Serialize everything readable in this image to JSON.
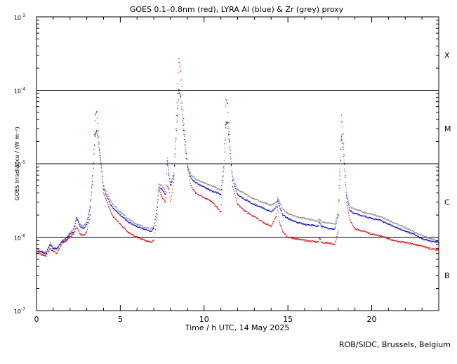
{
  "chart_data": {
    "type": "scatter",
    "title": "GOES 0.1–0.8nm (red), LYRA Al (blue) & Zr (grey) proxy",
    "xlabel": "Time / h UTC, 14 May 2025",
    "ylabel": "GOES Irradiance / (W m⁻²)",
    "xlim": [
      0,
      24
    ],
    "ylim": [
      1e-07,
      0.001
    ],
    "yscale": "log",
    "x_ticks": [
      0,
      5,
      10,
      15,
      20
    ],
    "y_ticks": [
      {
        "value": 1e-07,
        "base": "10",
        "exp": "-7"
      },
      {
        "value": 1e-06,
        "base": "10",
        "exp": "-6"
      },
      {
        "value": 1e-05,
        "base": "10",
        "exp": "-5"
      },
      {
        "value": 0.0001,
        "base": "10",
        "exp": "-4"
      },
      {
        "value": 0.001,
        "base": "10",
        "exp": "-3"
      }
    ],
    "flare_class_lines": [
      1e-06,
      1e-05,
      0.0001
    ],
    "flare_classes": [
      {
        "label": "X",
        "y": 0.0003
      },
      {
        "label": "M",
        "y": 3e-05
      },
      {
        "label": "C",
        "y": 3e-06
      },
      {
        "label": "B",
        "y": 3e-07
      }
    ],
    "series": [
      {
        "name": "GOES 0.1–0.8nm",
        "color": "#dd0000",
        "x": [
          0,
          0.3,
          0.6,
          0.8,
          1.0,
          1.2,
          1.5,
          1.8,
          2.0,
          2.2,
          2.4,
          2.6,
          2.8,
          3.0,
          3.2,
          3.4,
          3.5,
          3.6,
          3.8,
          4.0,
          4.5,
          5.0,
          5.5,
          6.0,
          6.5,
          6.8,
          7.0,
          7.2,
          7.3,
          7.5,
          7.7,
          7.8,
          7.9,
          8.0,
          8.2,
          8.4,
          8.5,
          8.6,
          8.8,
          9.0,
          9.2,
          9.5,
          10.0,
          10.5,
          10.8,
          11.0,
          11.2,
          11.3,
          11.4,
          11.5,
          11.7,
          12.0,
          12.5,
          13.0,
          13.5,
          14.0,
          14.3,
          14.4,
          14.5,
          14.7,
          15.0,
          15.5,
          16.0,
          16.5,
          16.8,
          16.9,
          17.0,
          17.5,
          17.8,
          18.0,
          18.1,
          18.2,
          18.3,
          18.5,
          18.7,
          19.0,
          19.5,
          20.0,
          20.5,
          21.0,
          21.5,
          22.0,
          22.5,
          23.0,
          23.5,
          24.0
        ],
        "y": [
          6.2e-07,
          5.8e-07,
          5.6e-07,
          7e-07,
          6.5e-07,
          6e-07,
          8e-07,
          9e-07,
          1e-06,
          1.1e-06,
          1.4e-06,
          1.1e-06,
          1.05e-06,
          1.2e-06,
          2e-06,
          1e-05,
          4.5e-05,
          5.2e-05,
          1.4e-05,
          4e-06,
          2e-06,
          1.5e-06,
          1.15e-06,
          1e-06,
          9e-07,
          8.5e-07,
          9e-07,
          2e-06,
          4.5e-06,
          3.5e-06,
          3e-06,
          5e-06,
          4.5e-06,
          3e-06,
          6e-06,
          9e-05,
          0.00027,
          0.00018,
          3.5e-05,
          1e-05,
          5e-06,
          4e-06,
          3.5e-06,
          3e-06,
          2.5e-06,
          2.2e-06,
          1e-05,
          7.5e-05,
          6.5e-05,
          2.5e-05,
          5e-06,
          2.8e-06,
          2.2e-06,
          1.9e-06,
          1.6e-06,
          1.4e-06,
          1.9e-06,
          2.6e-06,
          1.6e-06,
          1.2e-06,
          1e-06,
          9.5e-07,
          9e-07,
          8.8e-07,
          8.5e-07,
          1e-06,
          8.5e-07,
          8.3e-07,
          8e-07,
          1.2e-06,
          6e-06,
          4.5e-05,
          2.5e-05,
          3e-06,
          1.7e-06,
          1.3e-06,
          1.2e-06,
          1.1e-06,
          1.05e-06,
          9.5e-07,
          8.8e-07,
          8.5e-07,
          8e-07,
          7.5e-07,
          7e-07,
          6.6e-07
        ]
      },
      {
        "name": "LYRA Al proxy",
        "color": "#0000cc",
        "x": [
          0,
          0.3,
          0.6,
          0.8,
          1.0,
          1.2,
          1.5,
          1.8,
          2.0,
          2.2,
          2.4,
          2.6,
          2.8,
          3.0,
          3.2,
          3.4,
          3.5,
          3.6,
          3.8,
          4.0,
          4.5,
          5.0,
          5.5,
          6.0,
          6.5,
          6.8,
          7.0,
          7.2,
          7.3,
          7.5,
          7.7,
          7.8,
          7.9,
          8.0,
          8.2,
          8.4,
          8.5,
          8.6,
          8.8,
          9.0,
          9.2,
          9.5,
          10.0,
          10.5,
          10.8,
          11.0,
          11.2,
          11.3,
          11.4,
          11.5,
          11.7,
          12.0,
          12.5,
          13.0,
          13.5,
          14.0,
          14.3,
          14.4,
          14.5,
          14.7,
          15.0,
          15.5,
          16.0,
          16.5,
          16.8,
          16.9,
          17.0,
          17.5,
          17.8,
          18.0,
          18.1,
          18.2,
          18.3,
          18.5,
          18.7,
          19.0,
          19.5,
          20.0,
          20.5,
          21.0,
          21.5,
          22.0,
          22.5,
          23.0,
          23.5,
          24.0
        ],
        "y": [
          6.5e-07,
          6.2e-07,
          6e-07,
          8e-07,
          7e-07,
          6.8e-07,
          8.5e-07,
          9.5e-07,
          1.1e-06,
          1.2e-06,
          1.8e-06,
          1.4e-06,
          1.3e-06,
          1.5e-06,
          2.5e-06,
          1e-05,
          2.5e-05,
          2.8e-05,
          1.2e-05,
          4.5e-06,
          2.6e-06,
          2e-06,
          1.6e-06,
          1.4e-06,
          1.25e-06,
          1.2e-06,
          1.3e-06,
          2.5e-06,
          4.8e-06,
          4.5e-06,
          3.8e-06,
          1.1e-05,
          7e-06,
          5e-06,
          7e-06,
          4.5e-05,
          0.0001,
          8e-05,
          2.5e-05,
          9e-06,
          6.5e-06,
          5.5e-06,
          4.8e-06,
          4.2e-06,
          4e-06,
          3.8e-06,
          1e-05,
          3.5e-05,
          3.6e-05,
          2e-05,
          6e-06,
          3.8e-06,
          3.2e-06,
          2.8e-06,
          2.5e-06,
          2.2e-06,
          2.6e-06,
          3.2e-06,
          2.6e-06,
          2e-06,
          1.8e-06,
          1.6e-06,
          1.5e-06,
          1.45e-06,
          1.4e-06,
          1.6e-06,
          1.4e-06,
          1.3e-06,
          1.3e-06,
          2e-06,
          8e-06,
          2.4e-05,
          1.6e-05,
          3.5e-06,
          2.3e-06,
          2.1e-06,
          1.95e-06,
          1.8e-06,
          1.7e-06,
          1.5e-06,
          1.35e-06,
          1.2e-06,
          1.1e-06,
          9.5e-07,
          8.8e-07,
          8.5e-07
        ]
      },
      {
        "name": "LYRA Zr proxy",
        "color": "#888888",
        "x": [
          0,
          0.3,
          0.6,
          0.8,
          1.0,
          1.2,
          1.5,
          1.8,
          2.0,
          2.2,
          2.4,
          2.6,
          2.8,
          3.0,
          3.2,
          3.4,
          3.5,
          3.6,
          3.8,
          4.0,
          4.5,
          5.0,
          5.5,
          6.0,
          6.5,
          6.8,
          7.0,
          7.2,
          7.3,
          7.5,
          7.7,
          7.8,
          7.9,
          8.0,
          8.2,
          8.4,
          8.5,
          8.6,
          8.8,
          9.0,
          9.2,
          9.5,
          10.0,
          10.5,
          10.8,
          11.0,
          11.2,
          11.3,
          11.4,
          11.5,
          11.7,
          12.0,
          12.5,
          13.0,
          13.5,
          14.0,
          14.3,
          14.4,
          14.5,
          14.7,
          15.0,
          15.5,
          16.0,
          16.5,
          16.8,
          16.9,
          17.0,
          17.5,
          17.8,
          18.0,
          18.1,
          18.2,
          18.3,
          18.5,
          18.7,
          19.0,
          19.5,
          20.0,
          20.5,
          21.0,
          21.5,
          22.0,
          22.5,
          23.0,
          23.5,
          24.0
        ],
        "y": [
          6.8e-07,
          6.4e-07,
          6.2e-07,
          8.3e-07,
          7.3e-07,
          7e-07,
          8.8e-07,
          1e-06,
          1.15e-06,
          1.3e-06,
          1.9e-06,
          1.5e-06,
          1.4e-06,
          1.6e-06,
          2.7e-06,
          1.1e-05,
          2.6e-05,
          2.9e-05,
          1.3e-05,
          5e-06,
          2.9e-06,
          2.2e-06,
          1.75e-06,
          1.5e-06,
          1.35e-06,
          1.3e-06,
          1.4e-06,
          2.7e-06,
          5.2e-06,
          5e-06,
          4.2e-06,
          1.2e-05,
          7.5e-06,
          5.5e-06,
          7.5e-06,
          4.7e-05,
          0.000105,
          8.5e-05,
          2.7e-05,
          1e-05,
          7.2e-06,
          6.2e-06,
          5.5e-06,
          5e-06,
          4.6e-06,
          4.4e-06,
          1.1e-05,
          3.7e-05,
          3.8e-05,
          2.1e-05,
          6.8e-06,
          4.5e-06,
          3.8e-06,
          3.3e-06,
          3e-06,
          2.7e-06,
          3e-06,
          3.5e-06,
          3e-06,
          2.4e-06,
          2.1e-06,
          1.9e-06,
          1.8e-06,
          1.7e-06,
          1.65e-06,
          1.8e-06,
          1.6e-06,
          1.55e-06,
          1.5e-06,
          2.2e-06,
          8.5e-06,
          2.5e-05,
          1.7e-05,
          3.9e-06,
          2.6e-06,
          2.4e-06,
          2.2e-06,
          2.05e-06,
          1.9e-06,
          1.7e-06,
          1.5e-06,
          1.35e-06,
          1.2e-06,
          1.05e-06,
          9.5e-07,
          9e-07
        ]
      }
    ]
  },
  "footer": {
    "credit": "ROB/SIDC, Brussels, Belgium"
  }
}
